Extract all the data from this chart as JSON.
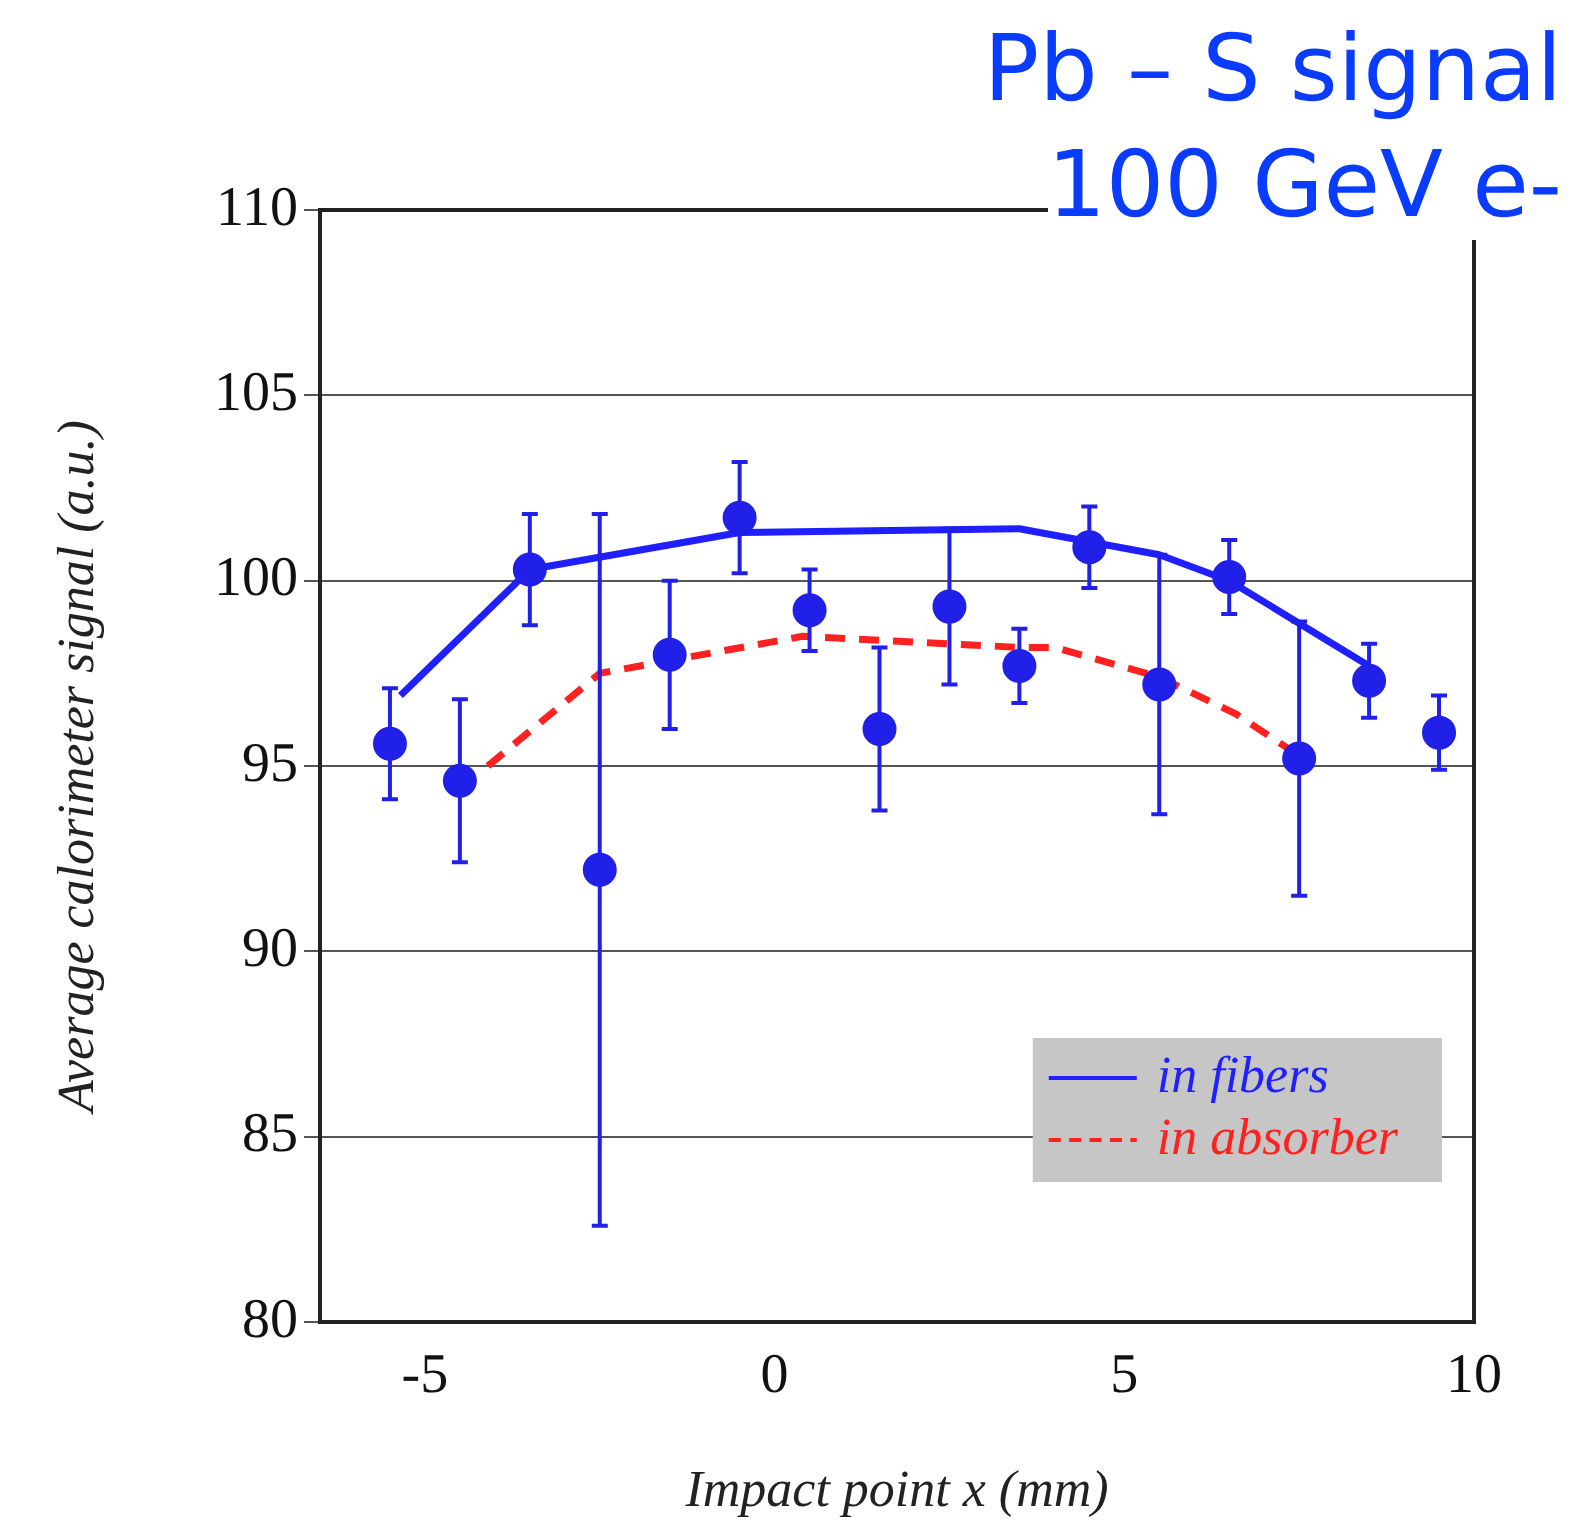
{
  "chart_data": {
    "type": "scatter",
    "title": "Pb – S signal",
    "subtitle": "100 GeV e-",
    "xlabel": "Impact point x (mm)",
    "ylabel": "Average calorimeter signal (a.u.)",
    "xlim": [
      -6.5,
      10
    ],
    "xticks": [
      -5,
      0,
      5,
      10
    ],
    "ylim": [
      80,
      110
    ],
    "yticks": [
      80,
      85,
      90,
      95,
      100,
      105,
      110
    ],
    "grid": "y",
    "legend": "bottom right",
    "marker": "circle",
    "series": [
      {
        "color": "#2020e8",
        "x": [
          -5.5,
          -4.5,
          -3.5,
          -2.5,
          -1.5,
          -0.5,
          0.5,
          1.5,
          2.5,
          3.5,
          4.5,
          5.5,
          6.5,
          7.5,
          8.5,
          9.5
        ],
        "values": [
          95.6,
          94.6,
          100.3,
          92.2,
          98.0,
          101.7,
          99.2,
          96.0,
          99.3,
          97.7,
          100.9,
          97.2,
          100.1,
          95.2,
          97.3,
          95.9
        ],
        "errors": [
          1.5,
          2.2,
          1.5,
          9.6,
          2,
          1.5,
          1.1,
          2.2,
          2.1,
          1,
          1.1,
          3.5,
          1,
          3.7,
          1,
          1
        ]
      },
      {
        "type": "line",
        "name": "in fibers",
        "color": "#1f1fff",
        "line_style": "solid",
        "marker": "none",
        "x": [
          -5.35,
          -3.5,
          -0.5,
          3.5,
          5.5,
          6.5,
          8.5
        ],
        "values": [
          96.9,
          100.3,
          101.3,
          101.4,
          100.7,
          100.0,
          97.7
        ]
      },
      {
        "type": "line",
        "name": "in absorber",
        "color": "#ff2020",
        "line_style": "dashed",
        "marker": "none",
        "x": [
          -4.1,
          -2.5,
          0.4,
          3.5,
          4.0,
          5.5,
          6.6,
          7.4
        ],
        "values": [
          95.0,
          97.5,
          98.5,
          98.2,
          98.2,
          97.4,
          96.4,
          95.4
        ]
      }
    ]
  }
}
